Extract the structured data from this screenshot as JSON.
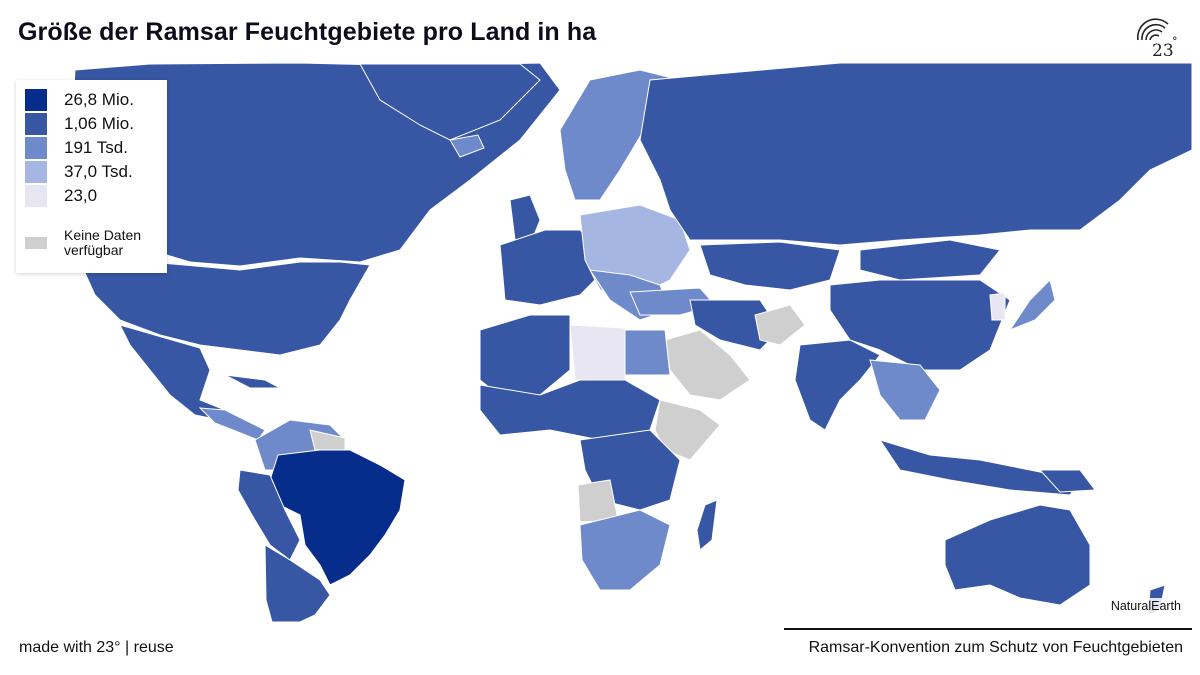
{
  "title": "Größe der Ramsar Feuchtgebiete pro Land in ha",
  "logo": {
    "text": "23",
    "degree": "°"
  },
  "legend": {
    "items": [
      {
        "label": "26,8 Mio.",
        "color": "#062d8c"
      },
      {
        "label": "1,06 Mio.",
        "color": "#3757a4"
      },
      {
        "label": "191 Tsd.",
        "color": "#6f8acb"
      },
      {
        "label": "37,0 Tsd.",
        "color": "#a6b6e2"
      },
      {
        "label": "23,0",
        "color": "#e8e6f2"
      }
    ],
    "no_data": {
      "label": "Keine Daten verfügbar",
      "color": "#cfcfcf"
    }
  },
  "map": {
    "credit": "NaturalEarth"
  },
  "footer": {
    "made_with": "made with 23°",
    "separator": "|",
    "reuse": "reuse",
    "source": "Ramsar-Konvention zum Schutz von Feuchtgebieten"
  }
}
